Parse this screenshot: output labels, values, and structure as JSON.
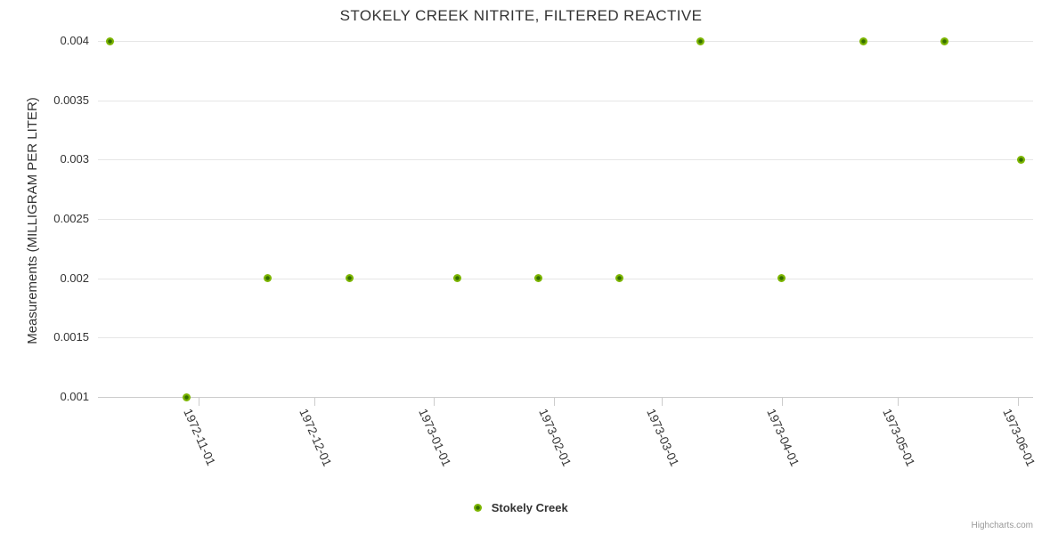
{
  "title": "STOKELY CREEK NITRITE, FILTERED REACTIVE",
  "legend": {
    "series_label": "Stokely Creek"
  },
  "credits": "Highcharts.com",
  "colors": {
    "series_green": "#7cb500",
    "series_green_dark": "#356e00",
    "grid": "#e6e6e6",
    "axis_line": "#cccccc",
    "text": "#333333",
    "credits_text": "#999999"
  },
  "chart_data": {
    "type": "scatter",
    "title": "STOKELY CREEK NITRITE, FILTERED REACTIVE",
    "xlabel": "",
    "ylabel": "Measurements (MILLIGRAM PER LITER)",
    "grid": true,
    "legend_position": "bottom-center",
    "xlim": [
      "1972-10-06",
      "1973-06-05"
    ],
    "ylim": [
      0.001,
      0.004
    ],
    "y_ticks": [
      {
        "value": 0.001,
        "label": "0.001"
      },
      {
        "value": 0.0015,
        "label": "0.0015"
      },
      {
        "value": 0.002,
        "label": "0.002"
      },
      {
        "value": 0.0025,
        "label": "0.0025"
      },
      {
        "value": 0.003,
        "label": "0.003"
      },
      {
        "value": 0.0035,
        "label": "0.0035"
      },
      {
        "value": 0.004,
        "label": "0.004"
      }
    ],
    "x_ticks": [
      {
        "date": "1972-11-01",
        "label": "1972-11-01"
      },
      {
        "date": "1972-12-01",
        "label": "1972-12-01"
      },
      {
        "date": "1973-01-01",
        "label": "1973-01-01"
      },
      {
        "date": "1973-02-01",
        "label": "1973-02-01"
      },
      {
        "date": "1973-03-01",
        "label": "1973-03-01"
      },
      {
        "date": "1973-04-01",
        "label": "1973-04-01"
      },
      {
        "date": "1973-05-01",
        "label": "1973-05-01"
      },
      {
        "date": "1973-06-01",
        "label": "1973-06-01"
      }
    ],
    "series": [
      {
        "name": "Stokely Creek",
        "color": "#7cb500",
        "points": [
          {
            "x": "1972-10-09",
            "y": 0.004
          },
          {
            "x": "1972-10-29",
            "y": 0.001
          },
          {
            "x": "1972-11-19",
            "y": 0.002
          },
          {
            "x": "1972-12-10",
            "y": 0.002
          },
          {
            "x": "1973-01-07",
            "y": 0.002
          },
          {
            "x": "1973-01-28",
            "y": 0.002
          },
          {
            "x": "1973-02-18",
            "y": 0.002
          },
          {
            "x": "1973-03-11",
            "y": 0.004
          },
          {
            "x": "1973-04-01",
            "y": 0.002
          },
          {
            "x": "1973-04-22",
            "y": 0.004
          },
          {
            "x": "1973-05-13",
            "y": 0.004
          },
          {
            "x": "1973-06-02",
            "y": 0.003
          }
        ]
      }
    ]
  }
}
